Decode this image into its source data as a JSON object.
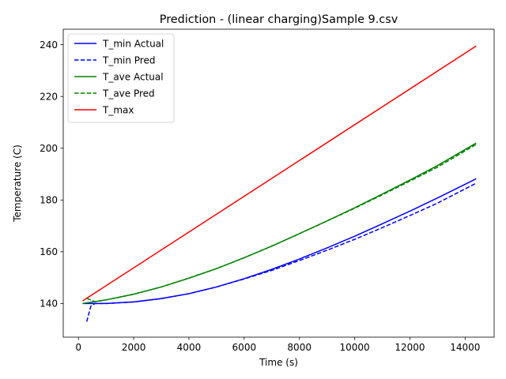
{
  "chart_data": {
    "type": "line",
    "title": "Prediction - (linear charging)Sample 9.csv",
    "xlabel": "Time (s)",
    "ylabel": "Temperature (C)",
    "xlim": [
      -550,
      15050
    ],
    "ylim": [
      127,
      246
    ],
    "xticks": [
      0,
      2000,
      4000,
      6000,
      8000,
      10000,
      12000,
      14000
    ],
    "yticks": [
      140,
      160,
      180,
      200,
      220,
      240
    ],
    "grid": false,
    "legend_position": "top-left",
    "series": [
      {
        "name": "T_min Actual",
        "color": "#0000ff",
        "dash": "solid",
        "x": [
          150,
          1000,
          2000,
          3000,
          4000,
          5000,
          6000,
          7000,
          8000,
          9000,
          10000,
          11000,
          12000,
          13000,
          14400
        ],
        "y": [
          140,
          140,
          140.6,
          141.9,
          143.8,
          146.4,
          149.6,
          153.2,
          157.2,
          161.5,
          166,
          170.8,
          175.7,
          180.8,
          188.2
        ]
      },
      {
        "name": "T_min Pred",
        "color": "#0000ff",
        "dash": "dashed",
        "x": [
          300,
          450,
          600,
          1000,
          2000,
          3000,
          4000,
          5000,
          6000,
          7000,
          8000,
          9000,
          10000,
          11000,
          12000,
          13000,
          14400
        ],
        "y": [
          133,
          139,
          140,
          140,
          140.6,
          141.9,
          143.8,
          146.4,
          149.5,
          152.8,
          156.6,
          160.6,
          164.8,
          169.3,
          174,
          178.8,
          186.5
        ]
      },
      {
        "name": "T_ave Actual",
        "color": "#008000",
        "dash": "solid",
        "x": [
          150,
          1000,
          2000,
          3000,
          4000,
          5000,
          6000,
          7000,
          8000,
          9000,
          10000,
          11000,
          12000,
          13000,
          14400
        ],
        "y": [
          140,
          141.4,
          143.6,
          146.4,
          149.8,
          153.5,
          157.7,
          162.2,
          167,
          171.9,
          177,
          182.3,
          187.7,
          193.3,
          202
        ]
      },
      {
        "name": "T_ave Pred",
        "color": "#008000",
        "dash": "dashed",
        "x": [
          300,
          600,
          1000,
          2000,
          3000,
          4000,
          5000,
          6000,
          7000,
          8000,
          9000,
          10000,
          11000,
          12000,
          13000,
          14400
        ],
        "y": [
          142,
          140.7,
          141.4,
          143.6,
          146.4,
          149.8,
          153.5,
          157.7,
          162.2,
          167,
          171.9,
          176.8,
          182,
          187.3,
          192.7,
          201.5
        ]
      },
      {
        "name": "T_max",
        "color": "#ff0000",
        "dash": "solid",
        "x": [
          150,
          14400
        ],
        "y": [
          141,
          239.5
        ]
      }
    ]
  }
}
